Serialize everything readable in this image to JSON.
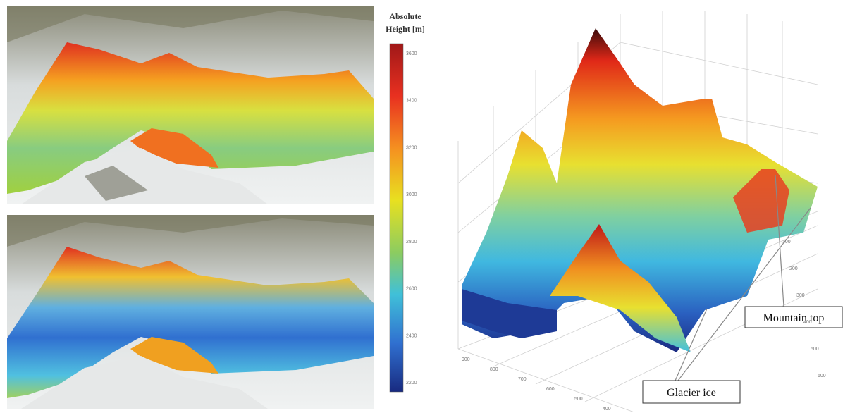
{
  "colorbar": {
    "title_lines": [
      "Absolute",
      "Height [m]"
    ],
    "ticks": [
      "3600",
      "3400",
      "3200",
      "3000",
      "2800",
      "2600",
      "2400",
      "2200"
    ]
  },
  "plot3d": {
    "right_ticks": [
      "100",
      "200",
      "300",
      "400",
      "500",
      "600"
    ],
    "bottom_ticks": [
      "900",
      "800",
      "700",
      "600",
      "500",
      "400"
    ]
  },
  "annotations": {
    "mountain_top": "Mountain top",
    "glacier_ice": "Glacier ice"
  }
}
